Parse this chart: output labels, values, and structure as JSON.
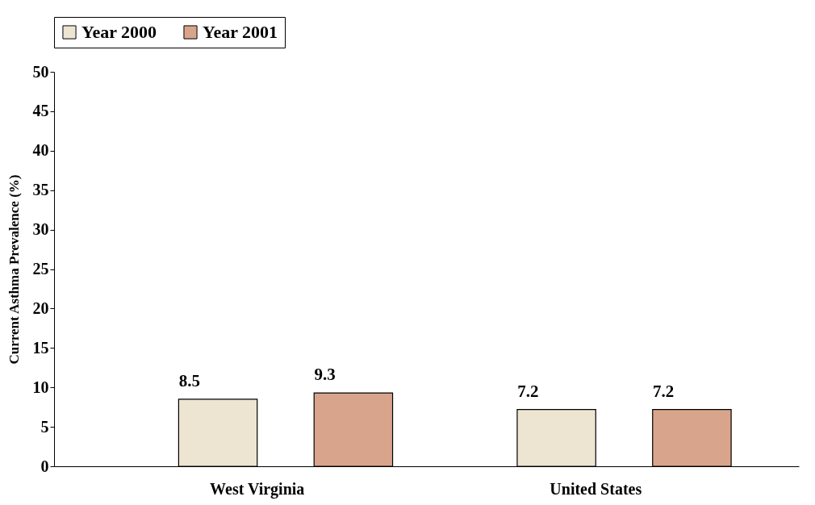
{
  "chart_data": {
    "type": "bar",
    "ylabel": "Current Asthma Prevalence (%)",
    "categories": [
      "West Virginia",
      "United States"
    ],
    "series": [
      {
        "name": "Year 2000",
        "color": "#ede4d2",
        "values": [
          8.5,
          7.2
        ]
      },
      {
        "name": "Year 2001",
        "color": "#d8a58c",
        "values": [
          9.3,
          7.2
        ]
      }
    ],
    "ylim": [
      0,
      50
    ],
    "yticks": [
      0,
      5,
      10,
      15,
      20,
      25,
      30,
      35,
      40,
      45,
      50
    ],
    "grid": false,
    "legend": "top",
    "data_labels": true
  }
}
